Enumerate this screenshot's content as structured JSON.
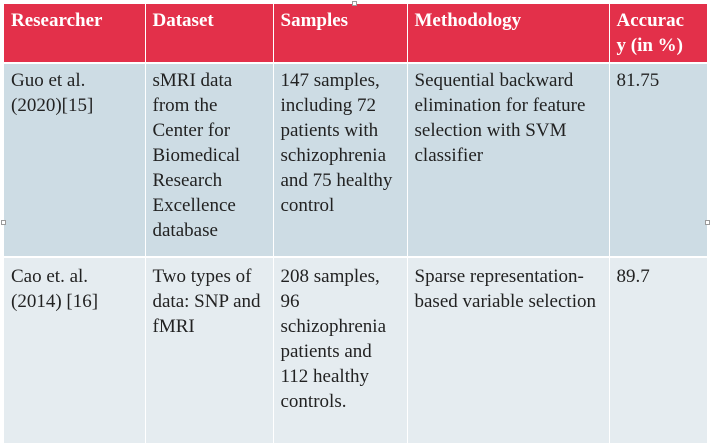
{
  "table": {
    "headers": [
      "Researcher",
      "Dataset",
      "Samples",
      "Methodology",
      "Accuracy (in %)"
    ],
    "header_display": {
      "researcher": "Researcher",
      "dataset": "Dataset",
      "samples": "Samples",
      "methodology": "Methodology",
      "accuracy_line1": "Accurac",
      "accuracy_line2": "y (in %)"
    },
    "rows": [
      {
        "researcher": "Guo et al. (2020)[15]",
        "dataset": "sMRI data from the Center for Biomedical Research Excellence database",
        "samples": "147 samples, including 72 patients with schizophrenia and 75 healthy control",
        "methodology": "Sequential backward elimination for feature selection with SVM classifier",
        "accuracy": "81.75"
      },
      {
        "researcher": "Cao et. al. (2014) [16]",
        "dataset": "Two types of data: SNP and fMRI",
        "samples": "208 samples, 96 schizophrenia patients and 112 healthy controls.",
        "methodology": "Sparse representation-based variable selection",
        "accuracy": "89.7"
      }
    ]
  },
  "colors": {
    "header_bg": "#e3304a",
    "row_1_bg": "#cddce4",
    "row_2_bg": "#e5ecf0"
  }
}
